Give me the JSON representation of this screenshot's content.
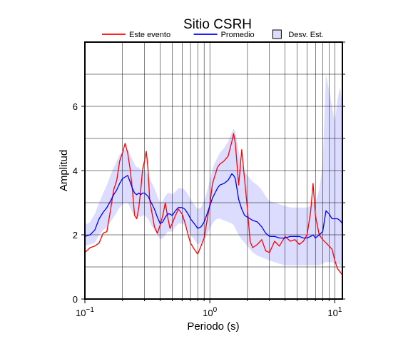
{
  "chart_data": {
    "type": "line",
    "title": "Sitio CSRH",
    "xlabel": "Periodo (s)",
    "ylabel": "Amplitud",
    "xscale": "log",
    "xlim": [
      0.1,
      11.5
    ],
    "ylim": [
      0,
      8
    ],
    "grid": true,
    "legend_placement": "top",
    "x_ticks": [
      {
        "value": 0.1,
        "base": "10",
        "exp": "−1"
      },
      {
        "value": 1,
        "base": "10",
        "exp": "0"
      },
      {
        "value": 10,
        "base": "10",
        "exp": "1"
      }
    ],
    "y_ticks": [
      0,
      2,
      4,
      6
    ],
    "legend": [
      {
        "label": "Este evento",
        "kind": "line",
        "color": "#ff0000"
      },
      {
        "label": "Promedio",
        "kind": "line",
        "color": "#0000ff"
      },
      {
        "label": "Desv. Est.",
        "kind": "box",
        "color": "#dcdcff"
      }
    ],
    "x": [
      0.1,
      0.11,
      0.12,
      0.13,
      0.14,
      0.15,
      0.16,
      0.17,
      0.18,
      0.19,
      0.2,
      0.21,
      0.22,
      0.23,
      0.24,
      0.25,
      0.26,
      0.27,
      0.28,
      0.29,
      0.3,
      0.31,
      0.32,
      0.33,
      0.34,
      0.36,
      0.38,
      0.4,
      0.42,
      0.44,
      0.46,
      0.48,
      0.5,
      0.53,
      0.56,
      0.6,
      0.63,
      0.67,
      0.7,
      0.75,
      0.8,
      0.85,
      0.9,
      0.95,
      1.0,
      1.05,
      1.1,
      1.15,
      1.2,
      1.3,
      1.4,
      1.5,
      1.55,
      1.6,
      1.7,
      1.8,
      1.9,
      2.0,
      2.1,
      2.2,
      2.4,
      2.6,
      2.8,
      3.0,
      3.3,
      3.6,
      4.0,
      4.4,
      4.8,
      5.2,
      5.6,
      6.0,
      6.4,
      6.7,
      7.0,
      7.5,
      8.0,
      8.5,
      9.0,
      9.5,
      10.0,
      10.5,
      11.0,
      11.5
    ],
    "series": [
      {
        "name": "Este evento",
        "color": "#ff0000",
        "values": [
          1.45,
          1.6,
          1.65,
          1.75,
          2.05,
          2.1,
          2.75,
          3.4,
          3.7,
          4.3,
          4.55,
          4.85,
          4.55,
          4.05,
          3.4,
          2.6,
          2.5,
          2.85,
          3.4,
          4.05,
          4.3,
          4.6,
          4.05,
          3.1,
          2.8,
          2.25,
          2.05,
          2.3,
          2.6,
          3.0,
          2.55,
          2.2,
          2.35,
          2.6,
          2.8,
          2.65,
          2.4,
          2.0,
          1.75,
          1.55,
          1.4,
          1.65,
          1.9,
          2.45,
          2.95,
          3.6,
          3.85,
          4.1,
          4.2,
          4.3,
          4.45,
          4.9,
          5.15,
          4.85,
          3.55,
          4.65,
          3.7,
          2.8,
          1.8,
          1.6,
          1.7,
          1.85,
          1.5,
          1.45,
          1.8,
          1.65,
          1.95,
          1.8,
          1.85,
          1.7,
          1.8,
          2.0,
          2.7,
          3.6,
          2.6,
          2.0,
          1.85,
          1.75,
          1.65,
          1.55,
          1.2,
          0.95,
          0.85,
          0.75
        ]
      },
      {
        "name": "Promedio",
        "color": "#0000ff",
        "values": [
          1.95,
          2.0,
          2.15,
          2.5,
          2.7,
          2.85,
          3.05,
          3.25,
          3.4,
          3.6,
          3.75,
          3.8,
          3.85,
          3.65,
          3.45,
          3.3,
          3.25,
          3.3,
          3.25,
          3.3,
          3.3,
          3.25,
          3.2,
          3.1,
          3.0,
          2.8,
          2.55,
          2.35,
          2.4,
          2.55,
          2.65,
          2.65,
          2.6,
          2.75,
          2.85,
          2.85,
          2.8,
          2.65,
          2.5,
          2.35,
          2.2,
          2.25,
          2.4,
          2.65,
          2.9,
          3.15,
          3.3,
          3.45,
          3.55,
          3.6,
          3.7,
          3.9,
          3.85,
          3.75,
          3.1,
          2.8,
          2.6,
          2.55,
          2.5,
          2.45,
          2.4,
          2.25,
          2.05,
          1.95,
          1.95,
          1.9,
          1.9,
          1.95,
          1.95,
          1.95,
          1.9,
          1.9,
          1.95,
          2.0,
          1.9,
          2.0,
          2.1,
          2.75,
          2.65,
          2.5,
          2.5,
          2.5,
          2.45,
          2.35
        ]
      }
    ],
    "band": {
      "name": "Desv. Est.",
      "color": "#dcdcff",
      "lower": [
        1.65,
        1.7,
        1.75,
        2.0,
        2.15,
        2.25,
        2.4,
        2.55,
        2.7,
        2.85,
        2.95,
        3.0,
        3.0,
        2.85,
        2.7,
        2.6,
        2.55,
        2.6,
        2.55,
        2.6,
        2.6,
        2.55,
        2.5,
        2.4,
        2.3,
        2.15,
        2.0,
        1.85,
        1.9,
        2.0,
        2.1,
        2.1,
        2.1,
        2.25,
        2.35,
        2.35,
        2.3,
        2.15,
        2.0,
        1.85,
        1.7,
        1.75,
        1.85,
        2.0,
        2.2,
        2.35,
        2.45,
        2.5,
        2.5,
        2.45,
        2.4,
        2.35,
        2.3,
        2.2,
        2.0,
        1.85,
        1.75,
        1.65,
        1.55,
        1.45,
        1.35,
        1.3,
        1.25,
        1.2,
        1.15,
        1.1,
        1.05,
        1.05,
        1.05,
        1.05,
        1.05,
        1.05,
        1.05,
        1.05,
        1.05,
        1.05,
        1.1,
        1.15,
        1.15,
        1.15,
        1.1,
        1.1,
        1.05,
        1.0
      ],
      "upper": [
        2.3,
        2.4,
        2.65,
        3.0,
        3.3,
        3.55,
        3.85,
        4.1,
        4.3,
        4.5,
        4.6,
        4.65,
        4.65,
        4.5,
        4.35,
        4.2,
        4.1,
        4.1,
        4.0,
        4.0,
        4.0,
        3.95,
        3.85,
        3.75,
        3.65,
        3.45,
        3.2,
        3.0,
        3.05,
        3.2,
        3.3,
        3.3,
        3.25,
        3.35,
        3.45,
        3.45,
        3.4,
        3.25,
        3.1,
        2.95,
        2.8,
        2.85,
        3.05,
        3.35,
        3.7,
        4.05,
        4.25,
        4.4,
        4.55,
        4.7,
        4.9,
        5.2,
        5.3,
        5.2,
        4.6,
        4.2,
        3.95,
        3.85,
        3.75,
        3.65,
        3.55,
        3.4,
        3.2,
        3.05,
        3.0,
        2.95,
        2.9,
        2.85,
        2.85,
        2.85,
        2.85,
        2.85,
        2.9,
        3.0,
        3.0,
        3.4,
        4.2,
        7.0,
        6.5,
        6.0,
        5.5,
        6.2,
        6.6,
        6.1
      ]
    }
  }
}
